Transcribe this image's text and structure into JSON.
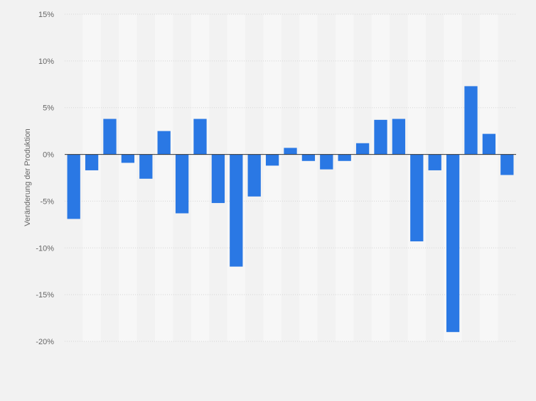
{
  "chart_data": {
    "type": "bar",
    "title": "",
    "xlabel": "",
    "ylabel": "Veränderung der Produktion",
    "ylim": [
      -20,
      15
    ],
    "yticks": [
      15,
      10,
      5,
      0,
      -5,
      -10,
      -15,
      -20
    ],
    "ytick_labels": [
      "15%",
      "10%",
      "5%",
      "0%",
      "-5%",
      "-10%",
      "-15%",
      "-20%"
    ],
    "grid": true,
    "values": [
      -6.9,
      -1.7,
      3.8,
      -0.9,
      -2.6,
      2.5,
      -6.3,
      3.8,
      -5.2,
      -12.0,
      -4.5,
      -1.2,
      0.7,
      -0.7,
      -1.6,
      -0.7,
      1.2,
      3.7,
      3.8,
      -9.3,
      -1.7,
      -19.0,
      7.3,
      2.2,
      -2.2
    ],
    "bar_color": "#2a78e4"
  },
  "colors": {
    "background": "#f2f2f2",
    "plot_band": "#f7f7f7",
    "grid": "#d6d6d6",
    "zero_line": "#333333",
    "axis_text": "#666666"
  }
}
